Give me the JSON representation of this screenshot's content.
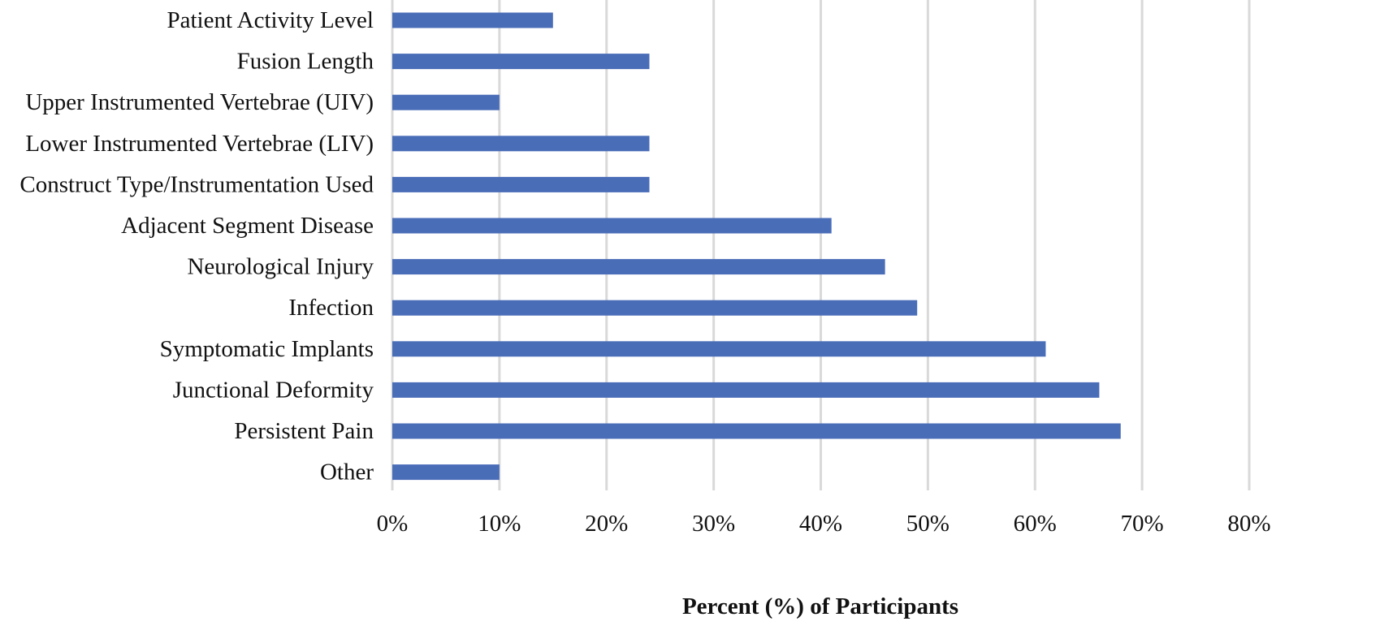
{
  "chart_data": {
    "type": "bar",
    "orientation": "horizontal",
    "categories": [
      "Patient Activity Level",
      "Fusion Length",
      "Upper Instrumented Vertebrae (UIV)",
      "Lower Instrumented Vertebrae (LIV)",
      "Construct Type/Instrumentation Used",
      "Adjacent Segment Disease",
      "Neurological Injury",
      "Infection",
      "Symptomatic Implants",
      "Junctional Deformity",
      "Persistent Pain",
      "Other"
    ],
    "values": [
      15,
      24,
      10,
      24,
      24,
      41,
      46,
      49,
      61,
      66,
      68,
      10
    ],
    "xlabel": "Percent (%) of Participants",
    "ylabel": "",
    "xlim": [
      0,
      80
    ],
    "x_ticks": [
      "0%",
      "10%",
      "20%",
      "30%",
      "40%",
      "50%",
      "60%",
      "70%",
      "80%"
    ],
    "grid": "vertical",
    "legend": "none",
    "colors": {
      "bar": "#4A6DB8",
      "grid": "#D9D9D9",
      "text": "#111111"
    }
  }
}
